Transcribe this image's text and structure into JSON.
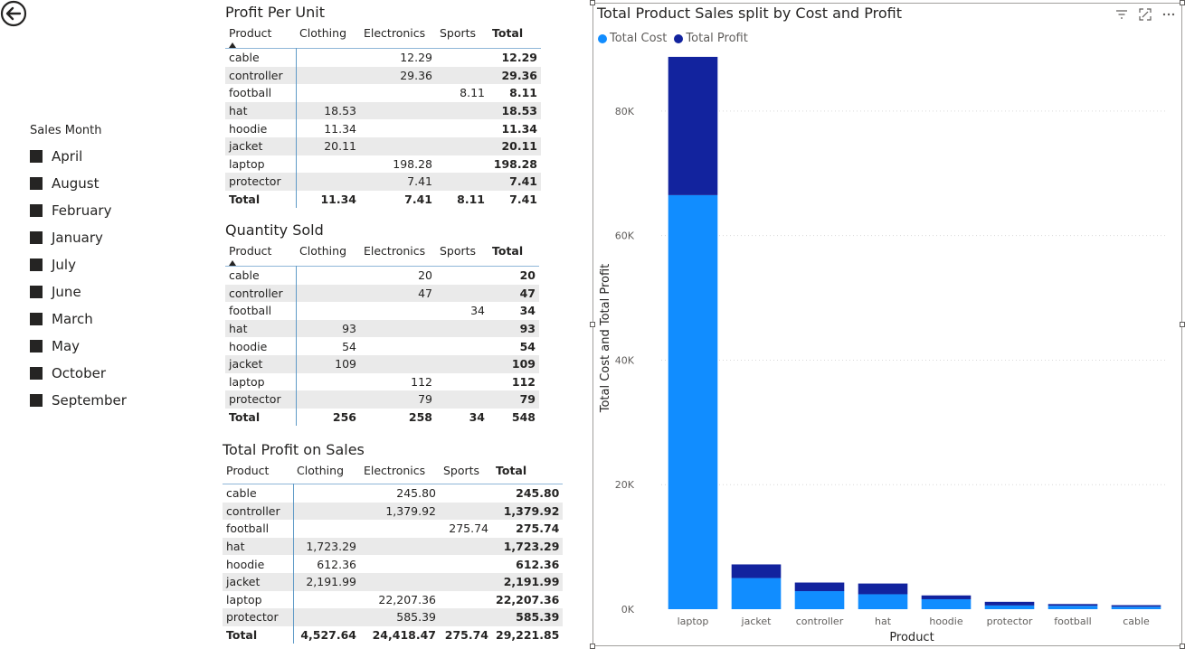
{
  "slicer": {
    "title": "Sales Month",
    "items": [
      "April",
      "August",
      "February",
      "January",
      "July",
      "June",
      "March",
      "May",
      "October",
      "September"
    ]
  },
  "matrices": [
    {
      "title": "Profit Per Unit",
      "sort_indicator": true,
      "columns": [
        "Product",
        "Clothing",
        "Electronics",
        "Sports",
        "Total"
      ],
      "rows": [
        [
          "cable",
          "",
          "12.29",
          "",
          "12.29"
        ],
        [
          "controller",
          "",
          "29.36",
          "",
          "29.36"
        ],
        [
          "football",
          "",
          "",
          "8.11",
          "8.11"
        ],
        [
          "hat",
          "18.53",
          "",
          "",
          "18.53"
        ],
        [
          "hoodie",
          "11.34",
          "",
          "",
          "11.34"
        ],
        [
          "jacket",
          "20.11",
          "",
          "",
          "20.11"
        ],
        [
          "laptop",
          "",
          "198.28",
          "",
          "198.28"
        ],
        [
          "protector",
          "",
          "7.41",
          "",
          "7.41"
        ]
      ],
      "total": [
        "Total",
        "11.34",
        "7.41",
        "8.11",
        "7.41"
      ]
    },
    {
      "title": "Quantity Sold",
      "sort_indicator": true,
      "columns": [
        "Product",
        "Clothing",
        "Electronics",
        "Sports",
        "Total"
      ],
      "rows": [
        [
          "cable",
          "",
          "20",
          "",
          "20"
        ],
        [
          "controller",
          "",
          "47",
          "",
          "47"
        ],
        [
          "football",
          "",
          "",
          "34",
          "34"
        ],
        [
          "hat",
          "93",
          "",
          "",
          "93"
        ],
        [
          "hoodie",
          "54",
          "",
          "",
          "54"
        ],
        [
          "jacket",
          "109",
          "",
          "",
          "109"
        ],
        [
          "laptop",
          "",
          "112",
          "",
          "112"
        ],
        [
          "protector",
          "",
          "79",
          "",
          "79"
        ]
      ],
      "total": [
        "Total",
        "256",
        "258",
        "34",
        "548"
      ]
    },
    {
      "title": "Total Profit on Sales",
      "sort_indicator": false,
      "columns": [
        "Product",
        "Clothing",
        "Electronics",
        "Sports",
        "Total"
      ],
      "rows": [
        [
          "cable",
          "",
          "245.80",
          "",
          "245.80"
        ],
        [
          "controller",
          "",
          "1,379.92",
          "",
          "1,379.92"
        ],
        [
          "football",
          "",
          "",
          "275.74",
          "275.74"
        ],
        [
          "hat",
          "1,723.29",
          "",
          "",
          "1,723.29"
        ],
        [
          "hoodie",
          "612.36",
          "",
          "",
          "612.36"
        ],
        [
          "jacket",
          "2,191.99",
          "",
          "",
          "2,191.99"
        ],
        [
          "laptop",
          "",
          "22,207.36",
          "",
          "22,207.36"
        ],
        [
          "protector",
          "",
          "585.39",
          "",
          "585.39"
        ]
      ],
      "total": [
        "Total",
        "4,527.64",
        "24,418.47",
        "275.74",
        "29,221.85"
      ]
    }
  ],
  "icons": {
    "back": "back-arrow-icon",
    "filter": "filter-icon",
    "focus": "focus-mode-icon",
    "more": "more-options-icon"
  },
  "chart_data": {
    "type": "bar",
    "stacked": true,
    "title": "Total Product Sales split by Cost and Profit",
    "xlabel": "Product",
    "ylabel": "Total Cost and Total Profit",
    "categories": [
      "laptop",
      "jacket",
      "controller",
      "hat",
      "hoodie",
      "protector",
      "football",
      "cable"
    ],
    "series": [
      {
        "name": "Total Cost",
        "color": "#118dff",
        "values": [
          66500,
          5000,
          2900,
          2400,
          1600,
          600,
          550,
          400
        ]
      },
      {
        "name": "Total Profit",
        "color": "#12239e",
        "values": [
          22207.36,
          2191.99,
          1379.92,
          1723.29,
          612.36,
          585.39,
          275.74,
          245.8
        ]
      }
    ],
    "yticks": [
      "0K",
      "20K",
      "40K",
      "60K",
      "80K"
    ],
    "ylim": [
      0,
      90000
    ],
    "legend": "top-left",
    "grid": true
  }
}
